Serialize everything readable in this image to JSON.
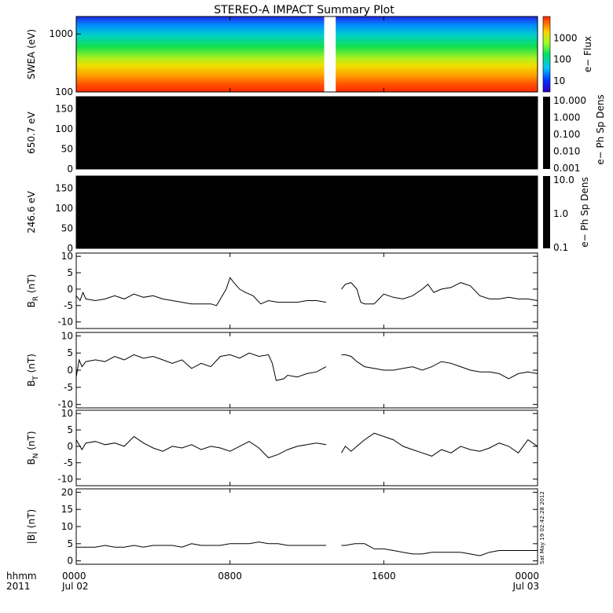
{
  "title": "STEREO-A IMPACT Summary Plot",
  "stamp": "Sat May 19 02:42:28 2012",
  "time_axis": {
    "row_label": "hhmm",
    "year_label": "2011",
    "ticks": [
      {
        "hour": 0,
        "label": "0000",
        "date": "Jul 02"
      },
      {
        "hour": 8,
        "label": "0800",
        "date": ""
      },
      {
        "hour": 16,
        "label": "1600",
        "date": ""
      },
      {
        "hour": 24,
        "label": "0000",
        "date": "Jul 03"
      }
    ],
    "range_hours": [
      0,
      24
    ]
  },
  "chart_data": [
    {
      "type": "heatmap",
      "ylabel": "SWEA (eV)",
      "yscale": "log",
      "ylim": [
        100,
        2000
      ],
      "yticks": [
        100,
        1000
      ],
      "yticklabels": [
        "100",
        "1000"
      ],
      "colorbar": {
        "label": "e− Flux",
        "scale": "log",
        "range": [
          3,
          10000
        ],
        "ticks": [
          10,
          100,
          1000
        ],
        "ticklabels": [
          "10",
          "100",
          "1000"
        ]
      },
      "data_gap_hours": [
        12.9,
        13.5
      ],
      "profile_note": "flux highest at low energy, decreasing with energy"
    },
    {
      "type": "heatmap",
      "ylabel": "650.7 eV",
      "ylim": [
        0,
        180
      ],
      "yticks": [
        0,
        50,
        100,
        150
      ],
      "fill_color": "#000000",
      "colorbar": {
        "label": "e− Ph Sp Dens",
        "scale": "log",
        "range": [
          0.001,
          10
        ],
        "ticks": [
          0.001,
          0.01,
          0.1,
          1,
          10
        ],
        "ticklabels": [
          "0.001",
          "0.010",
          "0.100",
          "1.000",
          "10.000"
        ]
      }
    },
    {
      "type": "heatmap",
      "ylabel": "246.6 eV",
      "ylim": [
        0,
        180
      ],
      "yticks": [
        0,
        50,
        100,
        150
      ],
      "fill_color": "#000000",
      "colorbar": {
        "label": "e− Ph Sp Dens",
        "scale": "log",
        "range": [
          0.1,
          10
        ],
        "ticks": [
          0.1,
          1,
          10
        ],
        "ticklabels": [
          "0.1",
          "1.0",
          "10.0"
        ]
      }
    },
    {
      "type": "line",
      "ylabel": "B",
      "ylabel_sub": "R",
      "ylabel_unit": " (nT)",
      "ylim": [
        -12,
        11
      ],
      "yticks": [
        -10,
        -5,
        0,
        5,
        10
      ],
      "gap_hours": [
        13.0,
        13.8
      ],
      "x": [
        0,
        0.2,
        0.35,
        0.5,
        1,
        1.5,
        2,
        2.5,
        3,
        3.5,
        4,
        4.5,
        5,
        5.5,
        6,
        6.5,
        7,
        7.3,
        7.6,
        7.8,
        8.0,
        8.2,
        8.5,
        8.8,
        9.2,
        9.6,
        10,
        10.5,
        11,
        11.5,
        12,
        12.5,
        13.0,
        13.8,
        14.0,
        14.3,
        14.6,
        14.8,
        15.0,
        15.5,
        16,
        16.5,
        17,
        17.5,
        18,
        18.3,
        18.6,
        19,
        19.5,
        20,
        20.5,
        21,
        21.5,
        22,
        22.5,
        23,
        23.5,
        24
      ],
      "y": [
        -2,
        -3.5,
        -1,
        -3,
        -3.5,
        -3,
        -2,
        -3,
        -1.5,
        -2.5,
        -2,
        -3,
        -3.5,
        -4,
        -4.5,
        -4.5,
        -4.5,
        -5,
        -2,
        0,
        3.5,
        2,
        0,
        -1,
        -2,
        -4.5,
        -3.5,
        -4,
        -4,
        -4,
        -3.5,
        -3.5,
        -4,
        0,
        1.5,
        2,
        0,
        -4,
        -4.5,
        -4.5,
        -1.5,
        -2.5,
        -3,
        -2,
        0,
        1.5,
        -1,
        0,
        0.5,
        2,
        1,
        -2,
        -3,
        -3,
        -2.5,
        -3,
        -3,
        -3.5
      ]
    },
    {
      "type": "line",
      "ylabel": "B",
      "ylabel_sub": "T",
      "ylabel_unit": " (nT)",
      "ylim": [
        -11,
        11
      ],
      "yticks": [
        -10,
        -5,
        0,
        5,
        10
      ],
      "gap_hours": [
        13.0,
        13.8
      ],
      "x": [
        0,
        0.15,
        0.3,
        0.5,
        1,
        1.5,
        2,
        2.5,
        3,
        3.5,
        4,
        4.5,
        5,
        5.5,
        6,
        6.5,
        7,
        7.5,
        8,
        8.5,
        9,
        9.5,
        10,
        10.2,
        10.4,
        10.8,
        11,
        11.5,
        12,
        12.5,
        13.0,
        13.8,
        14,
        14.3,
        14.6,
        15,
        15.5,
        16,
        16.5,
        17,
        17.5,
        18,
        18.5,
        19,
        19.5,
        20,
        20.5,
        21,
        21.5,
        22,
        22.5,
        23,
        23.5,
        24
      ],
      "y": [
        -2,
        3,
        1,
        2.5,
        3,
        2.5,
        4,
        3,
        4.5,
        3.5,
        4,
        3,
        2,
        3,
        0.5,
        2,
        1,
        4,
        4.5,
        3.5,
        5,
        4,
        4.5,
        2,
        -3,
        -2.5,
        -1.5,
        -2,
        -1,
        -0.5,
        1,
        4.5,
        4.5,
        4,
        2.5,
        1,
        0.5,
        0,
        0,
        0.5,
        1,
        0,
        1,
        2.5,
        2,
        1,
        0,
        -0.5,
        -0.5,
        -1,
        -2.5,
        -1,
        -0.5,
        -1
      ]
    },
    {
      "type": "line",
      "ylabel": "B",
      "ylabel_sub": "N",
      "ylabel_unit": " (nT)",
      "ylim": [
        -12,
        11
      ],
      "yticks": [
        -10,
        -5,
        0,
        5,
        10
      ],
      "gap_hours": [
        13.0,
        13.8
      ],
      "x": [
        0,
        0.3,
        0.5,
        1,
        1.5,
        2,
        2.5,
        3,
        3.5,
        4,
        4.5,
        5,
        5.5,
        6,
        6.5,
        7,
        7.5,
        8,
        8.5,
        9,
        9.5,
        10,
        10.5,
        11,
        11.5,
        12,
        12.5,
        13.0,
        13.8,
        14,
        14.3,
        14.6,
        15,
        15.5,
        16,
        16.5,
        17,
        17.5,
        18,
        18.5,
        19,
        19.5,
        20,
        20.5,
        21,
        21.5,
        22,
        22.5,
        23,
        23.5,
        24
      ],
      "y": [
        2,
        -1,
        1,
        1.5,
        0.5,
        1,
        0,
        3,
        1,
        -0.5,
        -1.5,
        0,
        -0.5,
        0.5,
        -1,
        0,
        -0.5,
        -1.5,
        0,
        1.5,
        -0.5,
        -3.5,
        -2.5,
        -1,
        0,
        0.5,
        1,
        0.5,
        -2,
        0,
        -1.5,
        0,
        2,
        4,
        3,
        2,
        0,
        -1,
        -2,
        -3,
        -1,
        -2,
        0,
        -1,
        -1.5,
        -0.5,
        1,
        0,
        -2,
        2,
        0
      ]
    },
    {
      "type": "line",
      "ylabel": "|B|",
      "ylabel_unit": " (nT)",
      "ylim": [
        -1,
        21
      ],
      "yticks": [
        0,
        5,
        10,
        15,
        20
      ],
      "gap_hours": [
        13.0,
        13.8
      ],
      "x": [
        0,
        0.5,
        1,
        1.5,
        2,
        2.5,
        3,
        3.5,
        4,
        4.5,
        5,
        5.5,
        6,
        6.5,
        7,
        7.5,
        8,
        8.5,
        9,
        9.5,
        10,
        10.5,
        11,
        11.5,
        12,
        12.5,
        13.0,
        13.8,
        14,
        14.5,
        15,
        15.5,
        16,
        16.5,
        17,
        17.5,
        18,
        18.5,
        19,
        19.5,
        20,
        20.5,
        21,
        21.5,
        22,
        22.5,
        23,
        23.5,
        24
      ],
      "y": [
        4,
        4,
        4,
        4.5,
        4,
        4,
        4.5,
        4,
        4.5,
        4.5,
        4.5,
        4,
        5,
        4.5,
        4.5,
        4.5,
        5,
        5,
        5,
        5.5,
        5,
        5,
        4.5,
        4.5,
        4.5,
        4.5,
        4.5,
        4.5,
        4.5,
        5,
        5,
        3.5,
        3.5,
        3,
        2.5,
        2,
        2,
        2.5,
        2.5,
        2.5,
        2.5,
        2,
        1.5,
        2.5,
        3,
        3,
        3,
        3,
        3
      ]
    }
  ]
}
